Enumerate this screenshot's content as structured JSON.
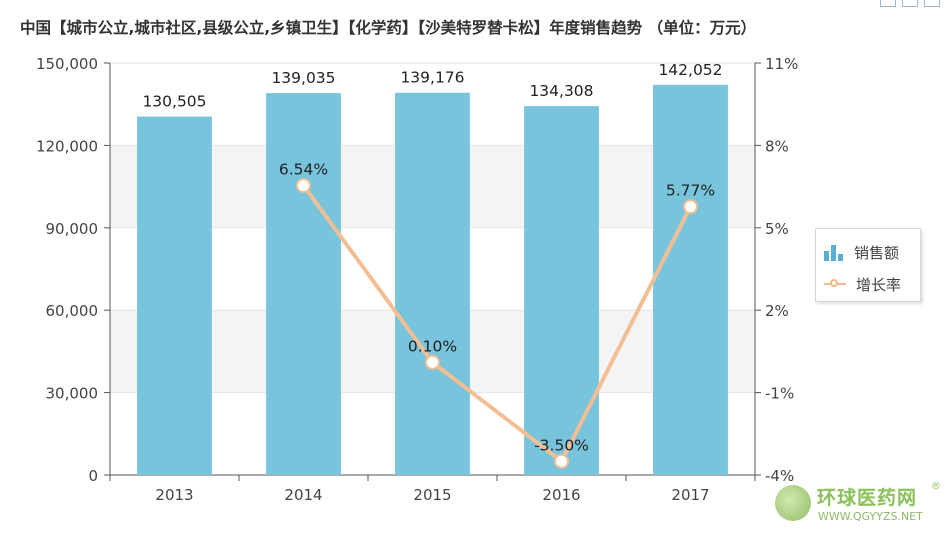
{
  "title": "中国【城市公立,城市社区,县级公立,乡镇卫生】【化学药】【沙美特罗替卡松】年度销售趋势 （单位：万元）",
  "chart_data": {
    "type": "bar+line",
    "categories": [
      "2013",
      "2014",
      "2015",
      "2016",
      "2017"
    ],
    "series": [
      {
        "name": "销售额",
        "kind": "bar",
        "axis": "left",
        "values": [
          130505,
          139035,
          139176,
          134308,
          142052
        ],
        "labels": [
          "130,505",
          "139,035",
          "139,176",
          "134,308",
          "142,052"
        ]
      },
      {
        "name": "增长率",
        "kind": "line",
        "axis": "right",
        "values": [
          null,
          6.54,
          0.1,
          -3.5,
          5.77
        ],
        "labels": [
          "",
          "6.54%",
          "0.10%",
          "-3.50%",
          "5.77%"
        ]
      }
    ],
    "y_left": {
      "min": 0,
      "max": 150000,
      "ticks": [
        0,
        30000,
        60000,
        90000,
        120000,
        150000
      ],
      "tick_labels": [
        "0",
        "30,000",
        "60,000",
        "90,000",
        "120,000",
        "150,000"
      ]
    },
    "y_right": {
      "min": -4,
      "max": 11,
      "ticks": [
        -4,
        -1,
        2,
        5,
        8,
        11
      ],
      "tick_labels": [
        "-4%",
        "-1%",
        "2%",
        "5%",
        "8%",
        "11%"
      ]
    },
    "legend_position": "right",
    "colors": {
      "bar": "#77c4dc",
      "line": "#f4be94",
      "band": "#f4f4f4",
      "axis": "#555555"
    }
  },
  "legend": {
    "items": [
      "销售额",
      "增长率"
    ]
  },
  "watermark": {
    "name": "环球医药网",
    "reg": "®",
    "url": "WWW.QGYYZS.NET"
  }
}
